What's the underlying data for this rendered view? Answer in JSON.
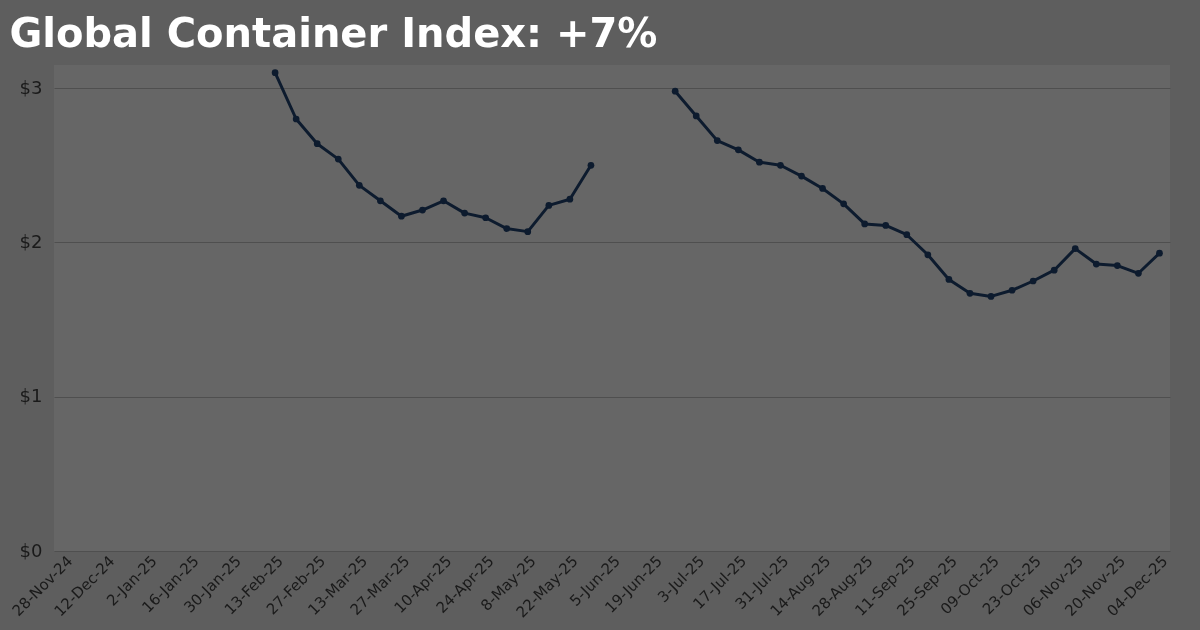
{
  "chart_data": {
    "type": "line",
    "title": "Global Container Index: +7%",
    "categories": [
      "28-Nov-24",
      null,
      "12-Dec-24",
      null,
      "2-Jan-25",
      null,
      "16-Jan-25",
      null,
      "30-Jan-25",
      null,
      "13-Feb-25",
      null,
      "27-Feb-25",
      null,
      "13-Mar-25",
      null,
      "27-Mar-25",
      null,
      "10-Apr-25",
      null,
      "24-Apr-25",
      null,
      "8-May-25",
      null,
      "22-May-25",
      null,
      "5-Jun-25",
      null,
      "19-Jun-25",
      null,
      "3-Jul-25",
      null,
      "17-Jul-25",
      null,
      "31-Jul-25",
      null,
      "14-Aug-25",
      null,
      "28-Aug-25",
      null,
      "11-Sep-25",
      null,
      "25-Sep-25",
      null,
      "09-Oct-25",
      null,
      "23-Oct-25",
      null,
      "06-Nov-25",
      null,
      "20-Nov-25",
      null,
      "04-Dec-25"
    ],
    "series": [
      {
        "color": "#0d1b2e",
        "values": [
          null,
          null,
          null,
          null,
          null,
          null,
          null,
          null,
          null,
          null,
          3.1,
          2.8,
          2.64,
          2.54,
          2.37,
          2.27,
          2.17,
          2.21,
          2.27,
          2.19,
          2.16,
          2.09,
          2.07,
          2.24,
          2.28,
          2.5,
          null,
          null,
          null,
          2.98,
          2.82,
          2.66,
          2.6,
          2.52,
          2.5,
          2.43,
          2.35,
          2.25,
          2.12,
          2.11,
          2.05,
          1.92,
          1.76,
          1.67,
          1.65,
          1.69,
          1.75,
          1.82,
          1.96,
          1.86,
          1.85,
          1.8,
          1.93
        ]
      }
    ],
    "ylim": [
      0,
      3.15
    ],
    "yticks": [
      {
        "value": 0,
        "label": "$0"
      },
      {
        "value": 1,
        "label": "$1"
      },
      {
        "value": 2,
        "label": "$2"
      },
      {
        "value": 3,
        "label": "$3"
      }
    ],
    "grid": "y",
    "marker": "circle",
    "line_style": "solid"
  }
}
